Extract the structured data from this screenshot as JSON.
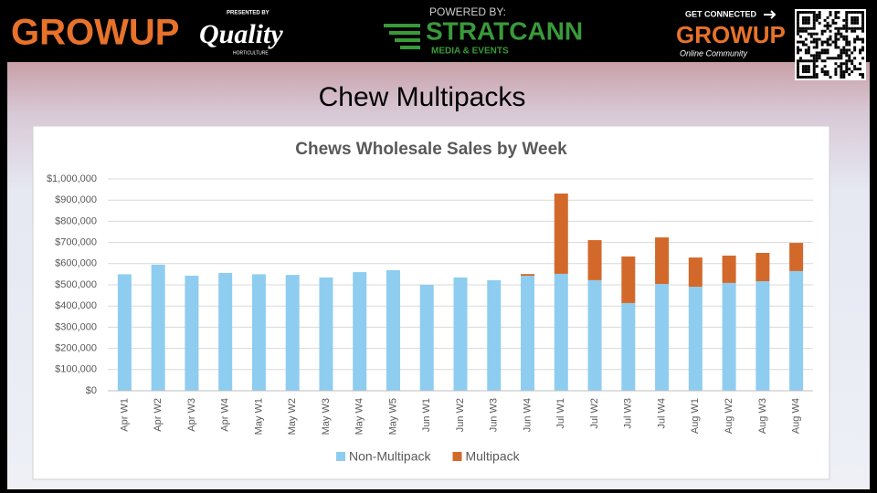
{
  "header": {
    "brand_left": "GROWUP",
    "presented_by": "PRESENTED BY",
    "sponsor": "Quality",
    "sponsor_sub": "HORTICULTURE",
    "powered_by": "POWERED BY:",
    "partner": "STRATCANN",
    "partner_sub": "MEDIA & EVENTS",
    "cta": "GET CONNECTED",
    "brand_right": "GROWUP",
    "brand_right_sub": "Online Community"
  },
  "slide_title": "Chew Multipacks",
  "chart_data": {
    "type": "stacked-bar",
    "title": "Chews Wholesale Sales by Week",
    "categories": [
      "Apr W1",
      "Apr W2",
      "Apr W3",
      "Apr W4",
      "May W1",
      "May W2",
      "May W3",
      "May W4",
      "May W5",
      "Jun W1",
      "Jun W2",
      "Jun W3",
      "Jun W4",
      "Jul W1",
      "Jul W2",
      "Jul W3",
      "Jul W4",
      "Aug W1",
      "Aug W2",
      "Aug W3",
      "Aug W4"
    ],
    "series": [
      {
        "name": "Non-Multipack",
        "color": "#8ecdf0",
        "values": [
          550000,
          595000,
          543000,
          556000,
          550000,
          547000,
          535000,
          560000,
          569000,
          500000,
          535000,
          522000,
          543000,
          552000,
          522000,
          414000,
          504000,
          491000,
          509000,
          517000,
          565000
        ]
      },
      {
        "name": "Multipack",
        "color": "#d2692b",
        "values": [
          0,
          0,
          0,
          0,
          0,
          0,
          0,
          0,
          0,
          0,
          0,
          0,
          8000,
          379000,
          189000,
          220000,
          220000,
          138000,
          129000,
          134000,
          133000
        ]
      }
    ],
    "ylim": [
      0,
      1000000
    ],
    "yticks": [
      {
        "value": 0,
        "label": "$0"
      },
      {
        "value": 100000,
        "label": "$100,000"
      },
      {
        "value": 200000,
        "label": "$200,000"
      },
      {
        "value": 300000,
        "label": "$300,000"
      },
      {
        "value": 400000,
        "label": "$400,000"
      },
      {
        "value": 500000,
        "label": "$500,000"
      },
      {
        "value": 600000,
        "label": "$600,000"
      },
      {
        "value": 700000,
        "label": "$700,000"
      },
      {
        "value": 800000,
        "label": "$800,000"
      },
      {
        "value": 900000,
        "label": "$900,000"
      },
      {
        "value": 1000000,
        "label": "$1,000,000"
      }
    ],
    "grid": true,
    "legend": "bottom"
  }
}
